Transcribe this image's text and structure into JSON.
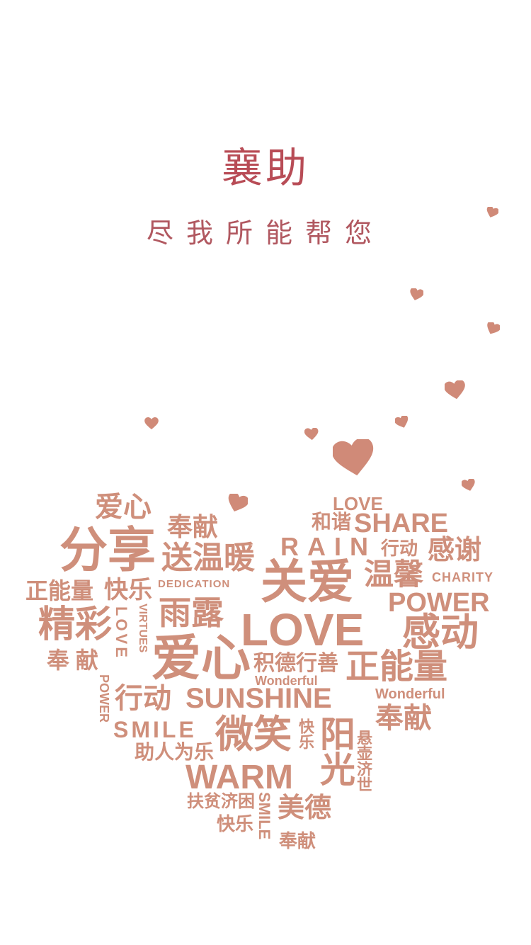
{
  "page": {
    "title": "襄助",
    "subtitle": "尽我所能帮您",
    "accent_color": "#b84c56",
    "word_color": "#cf8f7b",
    "heart_color": "#d08a78"
  },
  "word_cloud": {
    "aixin_top": "爱心",
    "fenxiang": "分享",
    "fengxian_top": "奉献",
    "songwennuan": "送温暖",
    "love_top": "LOVE",
    "hexie": "和谐",
    "share": "SHARE",
    "rain": "RAIN",
    "xingdong_top": "行动",
    "ganxie": "感谢",
    "zhengnengliang_left": "正能量",
    "kuaile_left": "快乐",
    "dedication": "DEDICATION",
    "guanai": "关爱",
    "wenxin": "温馨",
    "charity": "CHARITY",
    "power_right": "POWER",
    "jingcai": "精彩",
    "love_vertical": "LOVE",
    "virtues": "VIRTUES",
    "yulu": "雨露",
    "love_big": "LOVE",
    "gandong": "感动",
    "fengxian_left": "奉 献",
    "aixin_big": "爱心",
    "jideshan": "积德行善",
    "zhengnengliang_right": "正能量",
    "wonderful_1": "Wonderful",
    "wonderful_2": "Wonderful",
    "power_vertical": "POWER",
    "xingdong_mid": "行动",
    "sunshine": "SUNSHINE",
    "fengxian_right": "奉献",
    "smile_h": "SMILE",
    "weixiao": "微笑",
    "kuaile_small": "快乐",
    "yangguang": "阳光",
    "xuanhu": "悬壶济世",
    "zhurenweile": "助人为乐",
    "warm": "WARM",
    "fupinjikun": "扶贫济困",
    "smile_v": "SMILE",
    "meide": "美德",
    "kuaile_bottom": "快乐",
    "fengxian_bottom": "奉献"
  }
}
